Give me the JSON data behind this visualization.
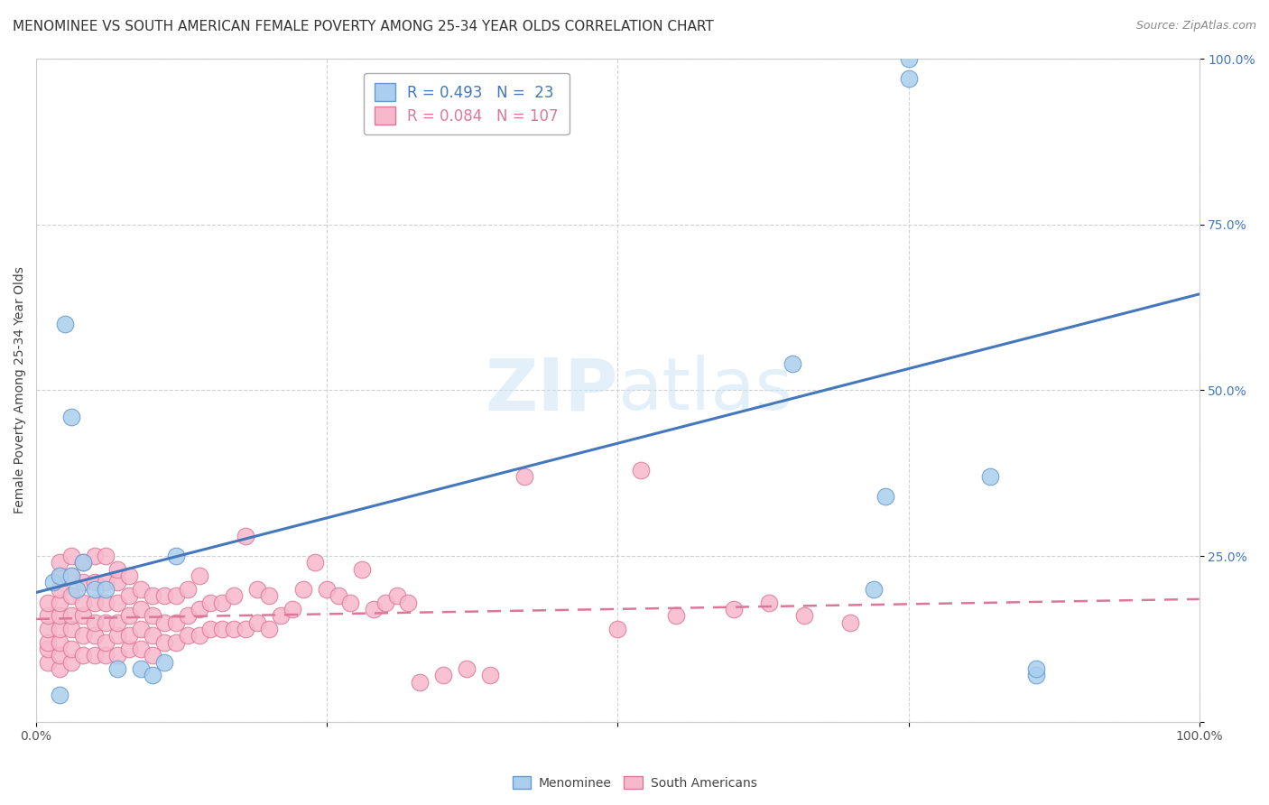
{
  "title": "MENOMINEE VS SOUTH AMERICAN FEMALE POVERTY AMONG 25-34 YEAR OLDS CORRELATION CHART",
  "source": "Source: ZipAtlas.com",
  "ylabel": "Female Poverty Among 25-34 Year Olds",
  "xlim": [
    0,
    1
  ],
  "ylim": [
    0,
    1
  ],
  "xticks": [
    0,
    0.25,
    0.5,
    0.75,
    1.0
  ],
  "yticks": [
    0,
    0.25,
    0.5,
    0.75,
    1.0
  ],
  "menominee_color": "#aacfee",
  "south_american_color": "#f7b8cc",
  "menominee_edge": "#6699cc",
  "south_american_edge": "#dd7799",
  "line_menominee_color": "#4477bb",
  "line_south_american_color": "#dd7799",
  "R_menominee": 0.493,
  "N_menominee": 23,
  "R_south_american": 0.084,
  "N_south_american": 107,
  "men_line_x0": 0.0,
  "men_line_y0": 0.195,
  "men_line_x1": 1.0,
  "men_line_y1": 0.645,
  "sa_line_x0": 0.0,
  "sa_line_y0": 0.155,
  "sa_line_x1": 1.0,
  "sa_line_y1": 0.185,
  "menominee_x": [
    0.015,
    0.02,
    0.025,
    0.03,
    0.03,
    0.035,
    0.04,
    0.05,
    0.06,
    0.07,
    0.09,
    0.1,
    0.11,
    0.12,
    0.02,
    0.65,
    0.72,
    0.73,
    0.82,
    0.86,
    0.86,
    0.75,
    0.75
  ],
  "menominee_y": [
    0.21,
    0.22,
    0.6,
    0.46,
    0.22,
    0.2,
    0.24,
    0.2,
    0.2,
    0.08,
    0.08,
    0.07,
    0.09,
    0.25,
    0.04,
    0.54,
    0.2,
    0.34,
    0.37,
    0.07,
    0.08,
    0.97,
    1.0
  ],
  "sa_x": [
    0.01,
    0.01,
    0.01,
    0.01,
    0.01,
    0.01,
    0.02,
    0.02,
    0.02,
    0.02,
    0.02,
    0.02,
    0.02,
    0.02,
    0.02,
    0.03,
    0.03,
    0.03,
    0.03,
    0.03,
    0.03,
    0.03,
    0.04,
    0.04,
    0.04,
    0.04,
    0.04,
    0.04,
    0.05,
    0.05,
    0.05,
    0.05,
    0.05,
    0.05,
    0.06,
    0.06,
    0.06,
    0.06,
    0.06,
    0.06,
    0.07,
    0.07,
    0.07,
    0.07,
    0.07,
    0.07,
    0.08,
    0.08,
    0.08,
    0.08,
    0.08,
    0.09,
    0.09,
    0.09,
    0.09,
    0.1,
    0.1,
    0.1,
    0.1,
    0.11,
    0.11,
    0.11,
    0.12,
    0.12,
    0.12,
    0.13,
    0.13,
    0.13,
    0.14,
    0.14,
    0.14,
    0.15,
    0.15,
    0.16,
    0.16,
    0.17,
    0.17,
    0.18,
    0.18,
    0.19,
    0.19,
    0.2,
    0.2,
    0.21,
    0.22,
    0.23,
    0.24,
    0.25,
    0.26,
    0.27,
    0.28,
    0.29,
    0.3,
    0.31,
    0.32,
    0.33,
    0.35,
    0.37,
    0.39,
    0.42,
    0.5,
    0.52,
    0.55,
    0.6,
    0.63,
    0.66,
    0.7
  ],
  "sa_y": [
    0.09,
    0.11,
    0.12,
    0.14,
    0.16,
    0.18,
    0.08,
    0.1,
    0.12,
    0.14,
    0.16,
    0.18,
    0.2,
    0.22,
    0.24,
    0.09,
    0.11,
    0.14,
    0.16,
    0.19,
    0.22,
    0.25,
    0.1,
    0.13,
    0.16,
    0.18,
    0.21,
    0.24,
    0.1,
    0.13,
    0.15,
    0.18,
    0.21,
    0.25,
    0.1,
    0.12,
    0.15,
    0.18,
    0.21,
    0.25,
    0.1,
    0.13,
    0.15,
    0.18,
    0.21,
    0.23,
    0.11,
    0.13,
    0.16,
    0.19,
    0.22,
    0.11,
    0.14,
    0.17,
    0.2,
    0.1,
    0.13,
    0.16,
    0.19,
    0.12,
    0.15,
    0.19,
    0.12,
    0.15,
    0.19,
    0.13,
    0.16,
    0.2,
    0.13,
    0.17,
    0.22,
    0.14,
    0.18,
    0.14,
    0.18,
    0.14,
    0.19,
    0.14,
    0.28,
    0.15,
    0.2,
    0.14,
    0.19,
    0.16,
    0.17,
    0.2,
    0.24,
    0.2,
    0.19,
    0.18,
    0.23,
    0.17,
    0.18,
    0.19,
    0.18,
    0.06,
    0.07,
    0.08,
    0.07,
    0.37,
    0.14,
    0.38,
    0.16,
    0.17,
    0.18,
    0.16,
    0.15
  ],
  "watermark_zip": "ZIP",
  "watermark_atlas": "atlas",
  "background_color": "#ffffff",
  "grid_color": "#cccccc",
  "title_fontsize": 11,
  "label_fontsize": 10,
  "tick_fontsize": 10,
  "legend_fontsize": 12,
  "tick_color_y": "#4477bb",
  "tick_color_x": "#555555"
}
